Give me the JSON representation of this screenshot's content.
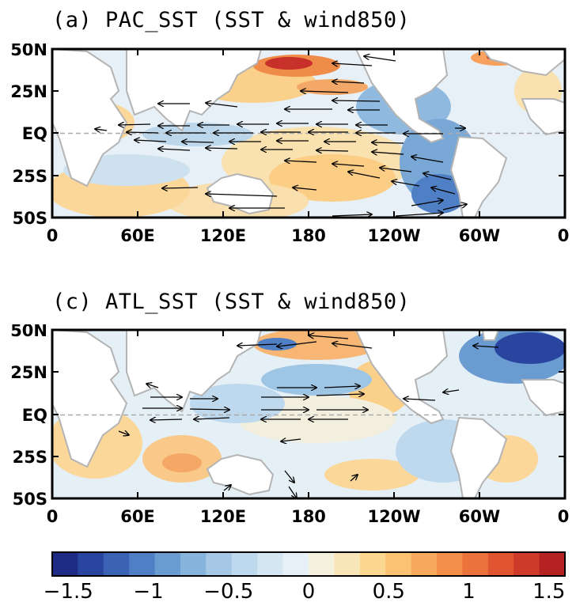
{
  "panels": [
    {
      "id": "a",
      "title": "(a) PAC_SST (SST & wind850)"
    },
    {
      "id": "c",
      "title": "(c) ATL_SST (SST & wind850)"
    }
  ],
  "axes": {
    "lat_labels": [
      "50N",
      "25N",
      "EQ",
      "25S",
      "50S"
    ],
    "lon_labels": [
      "0",
      "60E",
      "120E",
      "180",
      "120W",
      "60W",
      "0"
    ]
  },
  "colorbar": {
    "labels": [
      "−1.5",
      "−1",
      "−0.5",
      "0",
      "0.5",
      "1",
      "1.5"
    ],
    "range": [
      -1.6,
      1.6
    ],
    "colors": [
      "#1f2c86",
      "#2a45a0",
      "#3a62b5",
      "#4f7fc4",
      "#6a9bd1",
      "#87b4dd",
      "#a4c8e6",
      "#bed8ee",
      "#d5e6f3",
      "#e6f0f6",
      "#f4f1df",
      "#f9e6b8",
      "#fbd78f",
      "#fbc273",
      "#f8a95d",
      "#f38f4b",
      "#ec723b",
      "#e0552f",
      "#d03a28",
      "#b52222"
    ]
  },
  "colors": {
    "land": "#ffffff",
    "coast": "#b4b4b4",
    "frame": "#000000"
  }
}
